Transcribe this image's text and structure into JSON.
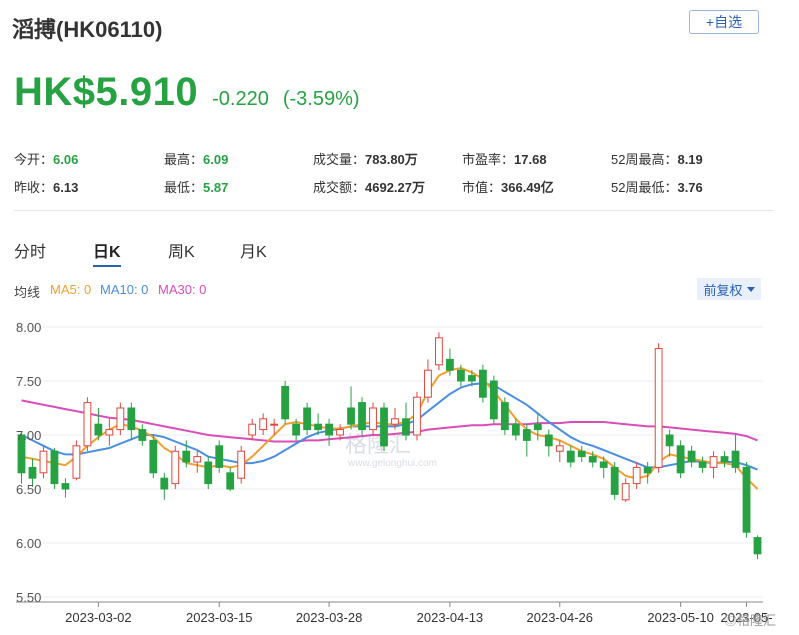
{
  "header": {
    "title": "滔搏(HK06110)",
    "watch_label": "+自选"
  },
  "quote": {
    "price": "HK$5.910",
    "change": "-0.220",
    "change_pct": "(-3.59%)"
  },
  "stats": {
    "open_label": "今开：",
    "open": "6.06",
    "high_label": "最高：",
    "high": "6.09",
    "volume_label": "成交量：",
    "volume": "783.80万",
    "pe_label": "市盈率：",
    "pe": "17.68",
    "high52_label": "52周最高：",
    "high52": "8.19",
    "prev_label": "昨收：",
    "prev": "6.13",
    "low_label": "最低：",
    "low": "5.87",
    "amount_label": "成交额：",
    "amount": "4692.27万",
    "mcap_label": "市值：",
    "mcap": "366.49亿",
    "low52_label": "52周最低：",
    "low52": "3.76"
  },
  "tabs": [
    "分时",
    "日K",
    "周K",
    "月K"
  ],
  "active_tab": "日K",
  "ma": {
    "label": "均线",
    "ma5": "MA5: 0",
    "ma10": "MA10: 0",
    "ma30": "MA30: 0",
    "adjust_label": "前复权"
  },
  "colors": {
    "up": "#e0473c",
    "down": "#27a243",
    "ma5": "#f0a030",
    "ma10": "#4a8ee0",
    "ma30": "#d94dbb",
    "accent": "#2a61b5"
  },
  "watermark": "格隆汇",
  "watermark_url": "www.gelonghui.com",
  "footer_logo": "格隆汇",
  "chart_data": {
    "type": "candlestick",
    "y_ticks": [
      "8.00",
      "7.50",
      "7.00",
      "6.50",
      "6.00",
      "5.50"
    ],
    "ylim": [
      5.5,
      8.0
    ],
    "x_ticks": [
      "2023-03-02",
      "2023-03-15",
      "2023-03-28",
      "2023-04-13",
      "2023-04-26",
      "2023-05-10",
      "2023-05-"
    ],
    "candles": [
      [
        7.0,
        6.65,
        7.02,
        6.55
      ],
      [
        6.7,
        6.6,
        6.78,
        6.52
      ],
      [
        6.65,
        6.85,
        6.9,
        6.6
      ],
      [
        6.85,
        6.55,
        6.88,
        6.5
      ],
      [
        6.55,
        6.5,
        6.6,
        6.42
      ],
      [
        6.6,
        6.9,
        6.95,
        6.58
      ],
      [
        6.9,
        7.3,
        7.35,
        6.85
      ],
      [
        7.1,
        7.0,
        7.25,
        6.95
      ],
      [
        7.0,
        7.05,
        7.15,
        6.9
      ],
      [
        7.05,
        7.25,
        7.3,
        7.0
      ],
      [
        7.25,
        7.05,
        7.3,
        6.95
      ],
      [
        7.05,
        6.95,
        7.1,
        6.9
      ],
      [
        6.95,
        6.65,
        7.0,
        6.6
      ],
      [
        6.6,
        6.5,
        6.65,
        6.4
      ],
      [
        6.55,
        6.85,
        6.9,
        6.5
      ],
      [
        6.85,
        6.75,
        6.95,
        6.7
      ],
      [
        6.75,
        6.8,
        6.85,
        6.65
      ],
      [
        6.75,
        6.55,
        6.8,
        6.5
      ],
      [
        6.9,
        6.7,
        6.95,
        6.65
      ],
      [
        6.65,
        6.5,
        6.7,
        6.48
      ],
      [
        6.6,
        6.85,
        6.9,
        6.55
      ],
      [
        7.0,
        7.1,
        7.15,
        6.95
      ],
      [
        7.05,
        7.15,
        7.2,
        7.0
      ],
      [
        7.1,
        7.1,
        7.15,
        7.0
      ],
      [
        7.45,
        7.15,
        7.5,
        7.1
      ],
      [
        7.1,
        7.0,
        7.15,
        6.95
      ],
      [
        7.25,
        7.05,
        7.3,
        7.0
      ],
      [
        7.1,
        7.05,
        7.2,
        7.0
      ],
      [
        7.1,
        7.0,
        7.15,
        6.9
      ],
      [
        7.0,
        7.05,
        7.1,
        6.95
      ],
      [
        7.25,
        7.1,
        7.45,
        7.05
      ],
      [
        7.3,
        7.05,
        7.35,
        7.0
      ],
      [
        7.05,
        7.25,
        7.3,
        7.0
      ],
      [
        7.25,
        6.9,
        7.3,
        6.85
      ],
      [
        7.1,
        7.15,
        7.25,
        7.05
      ],
      [
        7.15,
        7.0,
        7.3,
        6.95
      ],
      [
        7.0,
        7.35,
        7.4,
        6.95
      ],
      [
        7.35,
        7.6,
        7.7,
        7.3
      ],
      [
        7.65,
        7.9,
        7.95,
        7.6
      ],
      [
        7.7,
        7.6,
        7.8,
        7.55
      ],
      [
        7.6,
        7.5,
        7.65,
        7.45
      ],
      [
        7.55,
        7.5,
        7.6,
        7.45
      ],
      [
        7.6,
        7.35,
        7.65,
        7.3
      ],
      [
        7.5,
        7.15,
        7.55,
        7.1
      ],
      [
        7.3,
        7.05,
        7.35,
        7.0
      ],
      [
        7.1,
        7.0,
        7.15,
        6.95
      ],
      [
        7.05,
        6.95,
        7.1,
        6.8
      ],
      [
        7.1,
        7.05,
        7.2,
        6.95
      ],
      [
        7.0,
        6.9,
        7.05,
        6.8
      ],
      [
        6.85,
        6.9,
        6.95,
        6.75
      ],
      [
        6.85,
        6.75,
        6.9,
        6.7
      ],
      [
        6.85,
        6.8,
        6.9,
        6.75
      ],
      [
        6.8,
        6.75,
        6.85,
        6.7
      ],
      [
        6.75,
        6.7,
        6.8,
        6.6
      ],
      [
        6.7,
        6.45,
        6.75,
        6.4
      ],
      [
        6.4,
        6.55,
        6.6,
        6.38
      ],
      [
        6.55,
        6.7,
        6.75,
        6.5
      ],
      [
        6.7,
        6.65,
        6.75,
        6.55
      ],
      [
        6.7,
        7.8,
        7.85,
        6.65
      ],
      [
        7.0,
        6.9,
        7.05,
        6.8
      ],
      [
        6.9,
        6.65,
        6.95,
        6.6
      ],
      [
        6.85,
        6.75,
        6.9,
        6.7
      ],
      [
        6.75,
        6.7,
        6.8,
        6.65
      ],
      [
        6.7,
        6.8,
        6.85,
        6.6
      ],
      [
        6.8,
        6.75,
        6.85,
        6.7
      ],
      [
        6.85,
        6.7,
        7.0,
        6.65
      ],
      [
        6.7,
        6.1,
        6.75,
        6.05
      ],
      [
        6.05,
        5.9,
        6.07,
        5.85
      ]
    ],
    "ma5": [
      6.8,
      6.78,
      6.76,
      6.74,
      6.72,
      6.8,
      6.9,
      6.98,
      7.05,
      7.1,
      7.08,
      7.04,
      6.98,
      6.88,
      6.82,
      6.74,
      6.72,
      6.7,
      6.72,
      6.7,
      6.72,
      6.8,
      6.9,
      7.0,
      7.1,
      7.12,
      7.1,
      7.08,
      7.06,
      7.06,
      7.08,
      7.1,
      7.12,
      7.1,
      7.1,
      7.12,
      7.2,
      7.4,
      7.55,
      7.6,
      7.62,
      7.58,
      7.52,
      7.4,
      7.28,
      7.15,
      7.05,
      7.0,
      6.98,
      6.95,
      6.9,
      6.85,
      6.82,
      6.78,
      6.7,
      6.62,
      6.6,
      6.62,
      6.75,
      6.82,
      6.8,
      6.78,
      6.76,
      6.74,
      6.74,
      6.72,
      6.6,
      6.5
    ],
    "ma10": [
      7.0,
      6.95,
      6.9,
      6.85,
      6.82,
      6.82,
      6.84,
      6.86,
      6.88,
      6.92,
      6.96,
      7.0,
      7.0,
      6.98,
      6.94,
      6.9,
      6.86,
      6.8,
      6.78,
      6.76,
      6.74,
      6.74,
      6.76,
      6.8,
      6.86,
      6.92,
      6.98,
      7.02,
      7.04,
      7.06,
      7.08,
      7.08,
      7.08,
      7.08,
      7.08,
      7.1,
      7.14,
      7.22,
      7.3,
      7.38,
      7.44,
      7.47,
      7.48,
      7.46,
      7.4,
      7.34,
      7.28,
      7.2,
      7.12,
      7.05,
      6.98,
      6.93,
      6.9,
      6.86,
      6.82,
      6.78,
      6.74,
      6.7,
      6.7,
      6.72,
      6.74,
      6.76,
      6.75,
      6.74,
      6.75,
      6.75,
      6.72,
      6.68
    ],
    "ma30": [
      7.32,
      7.3,
      7.28,
      7.26,
      7.24,
      7.22,
      7.2,
      7.18,
      7.16,
      7.15,
      7.14,
      7.12,
      7.1,
      7.08,
      7.06,
      7.04,
      7.02,
      7.0,
      6.99,
      6.98,
      6.97,
      6.96,
      6.95,
      6.94,
      6.94,
      6.94,
      6.95,
      6.95,
      6.96,
      6.97,
      6.98,
      6.99,
      7.0,
      7.0,
      7.01,
      7.02,
      7.03,
      7.05,
      7.06,
      7.07,
      7.08,
      7.09,
      7.09,
      7.1,
      7.1,
      7.1,
      7.1,
      7.11,
      7.11,
      7.11,
      7.12,
      7.12,
      7.12,
      7.12,
      7.11,
      7.1,
      7.09,
      7.08,
      7.08,
      7.07,
      7.06,
      7.05,
      7.04,
      7.03,
      7.02,
      7.01,
      6.99,
      6.95
    ]
  }
}
